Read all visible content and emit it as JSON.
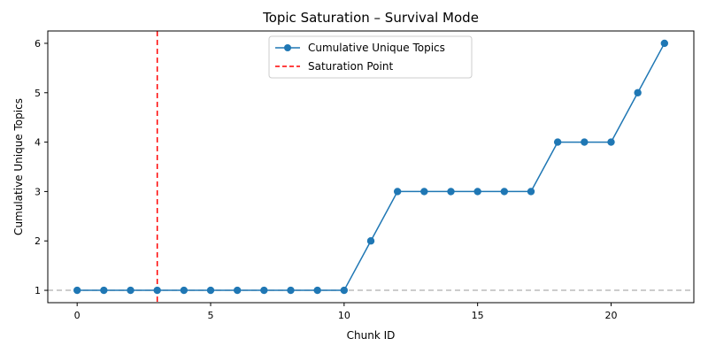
{
  "chart_data": {
    "type": "line",
    "title": "Topic Saturation – Survival Mode",
    "xlabel": "Chunk ID",
    "ylabel": "Cumulative Unique Topics",
    "xlim": [
      -1.1,
      23.1
    ],
    "ylim": [
      0.75,
      6.25
    ],
    "xticks": [
      0,
      5,
      10,
      15,
      20
    ],
    "yticks": [
      1,
      2,
      3,
      4,
      5,
      6
    ],
    "series": [
      {
        "name": "Cumulative Unique Topics",
        "color": "#1f77b4",
        "x": [
          0,
          1,
          2,
          3,
          4,
          5,
          6,
          7,
          8,
          9,
          10,
          11,
          12,
          13,
          14,
          15,
          16,
          17,
          18,
          19,
          20,
          21,
          22
        ],
        "values": [
          1,
          1,
          1,
          1,
          1,
          1,
          1,
          1,
          1,
          1,
          1,
          2,
          3,
          3,
          3,
          3,
          3,
          3,
          4,
          4,
          4,
          5,
          6
        ]
      }
    ],
    "saturation_line": {
      "name": "Saturation Point",
      "x": 3,
      "color": "#ff0000",
      "style": "dashed"
    },
    "baseline": {
      "y": 1,
      "color": "#bbbbbb",
      "style": "dashed"
    },
    "legend_position": "top-center",
    "grid": false
  }
}
